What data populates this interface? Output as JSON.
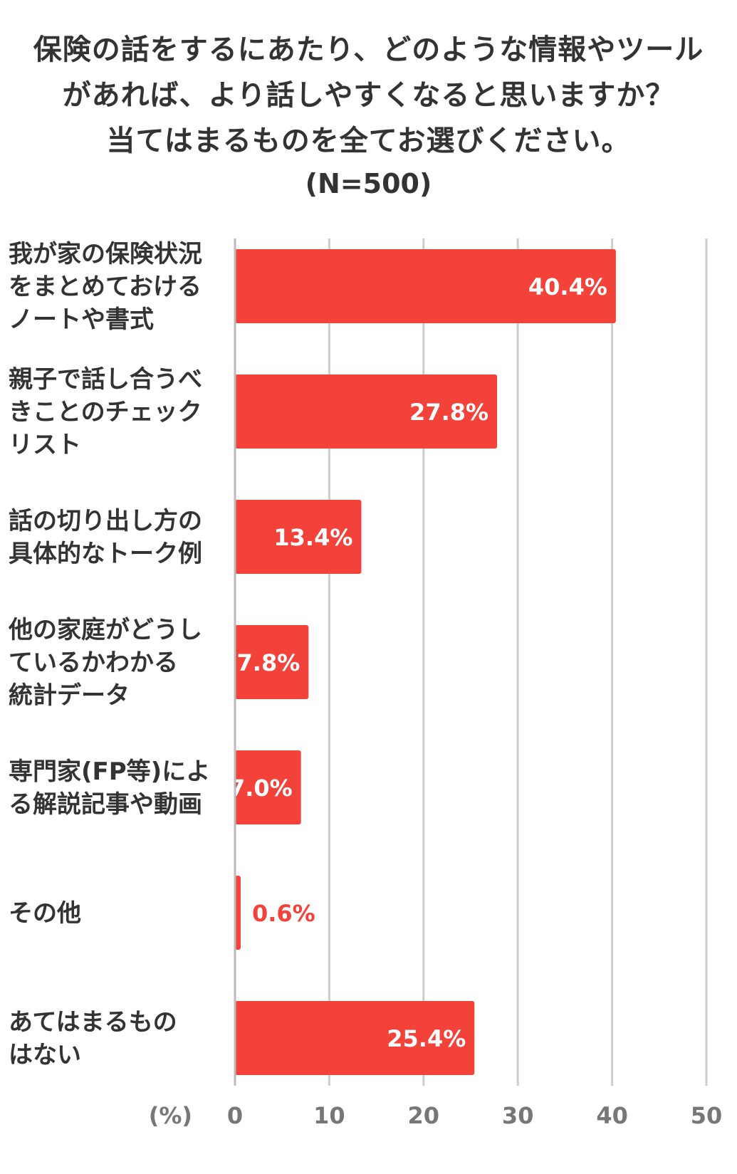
{
  "chart_data": {
    "type": "bar",
    "orientation": "horizontal",
    "title_lines": [
      "保険の話をするにあたり、どのような情報やツール",
      "があれば、より話しやすくなると思いますか？",
      "当てはまるものを全てお選びください。"
    ],
    "subtitle": "(N=500)",
    "unit_label": "(%)",
    "categories": [
      [
        "我が家の保険状況",
        "をまとめておける",
        "ノートや書式"
      ],
      [
        "親子で話し合うべ",
        "きことのチェック",
        "リスト"
      ],
      [
        "話の切り出し方の",
        "具体的なトーク例"
      ],
      [
        "他の家庭がどうし",
        "ているかわかる",
        "統計データ"
      ],
      [
        "専門家(FP等)によ",
        "る解説記事や動画"
      ],
      [
        "その他"
      ],
      [
        "あてはまるもの",
        "はない"
      ]
    ],
    "values": [
      40.4,
      27.8,
      13.4,
      7.8,
      7.0,
      0.6,
      25.4
    ],
    "value_labels": [
      "40.4%",
      "27.8%",
      "13.4%",
      "7.8%",
      "7.0%",
      "0.6%",
      "25.4%"
    ],
    "xlim": [
      0,
      50
    ],
    "ticks": [
      0,
      10,
      20,
      30,
      40,
      50
    ],
    "grid": true,
    "bar_color": "#f2423a",
    "label_inside_color": "#ffffff",
    "label_outside_color": "#f2423a"
  }
}
